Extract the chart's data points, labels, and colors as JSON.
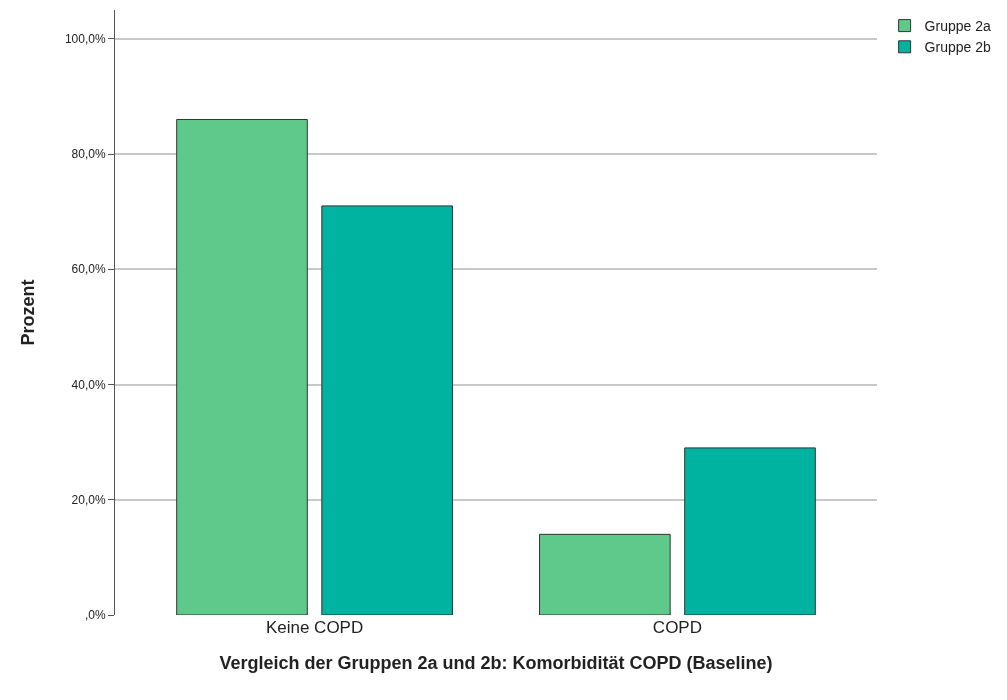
{
  "chart_data": {
    "type": "bar",
    "xlabel": "Vergleich der Gruppen 2a und 2b: Komorbidität COPD (Baseline)",
    "ylabel": "Prozent",
    "categories": [
      "Keine COPD",
      "COPD"
    ],
    "series": [
      {
        "name": "Gruppe 2a",
        "color": "#5ec98a",
        "values": [
          86,
          14
        ]
      },
      {
        "name": "Gruppe 2b",
        "color": "#00b2a0",
        "values": [
          71,
          29
        ]
      }
    ],
    "ylim": [
      0,
      105
    ],
    "yticks": [
      {
        "value": 0,
        "label": ",0%"
      },
      {
        "value": 20,
        "label": "20,0%"
      },
      {
        "value": 40,
        "label": "40,0%"
      },
      {
        "value": 60,
        "label": "60,0%"
      },
      {
        "value": 80,
        "label": "80,0%"
      },
      {
        "value": 100,
        "label": "100,0%"
      }
    ],
    "grid": "y",
    "legend": "top right"
  }
}
